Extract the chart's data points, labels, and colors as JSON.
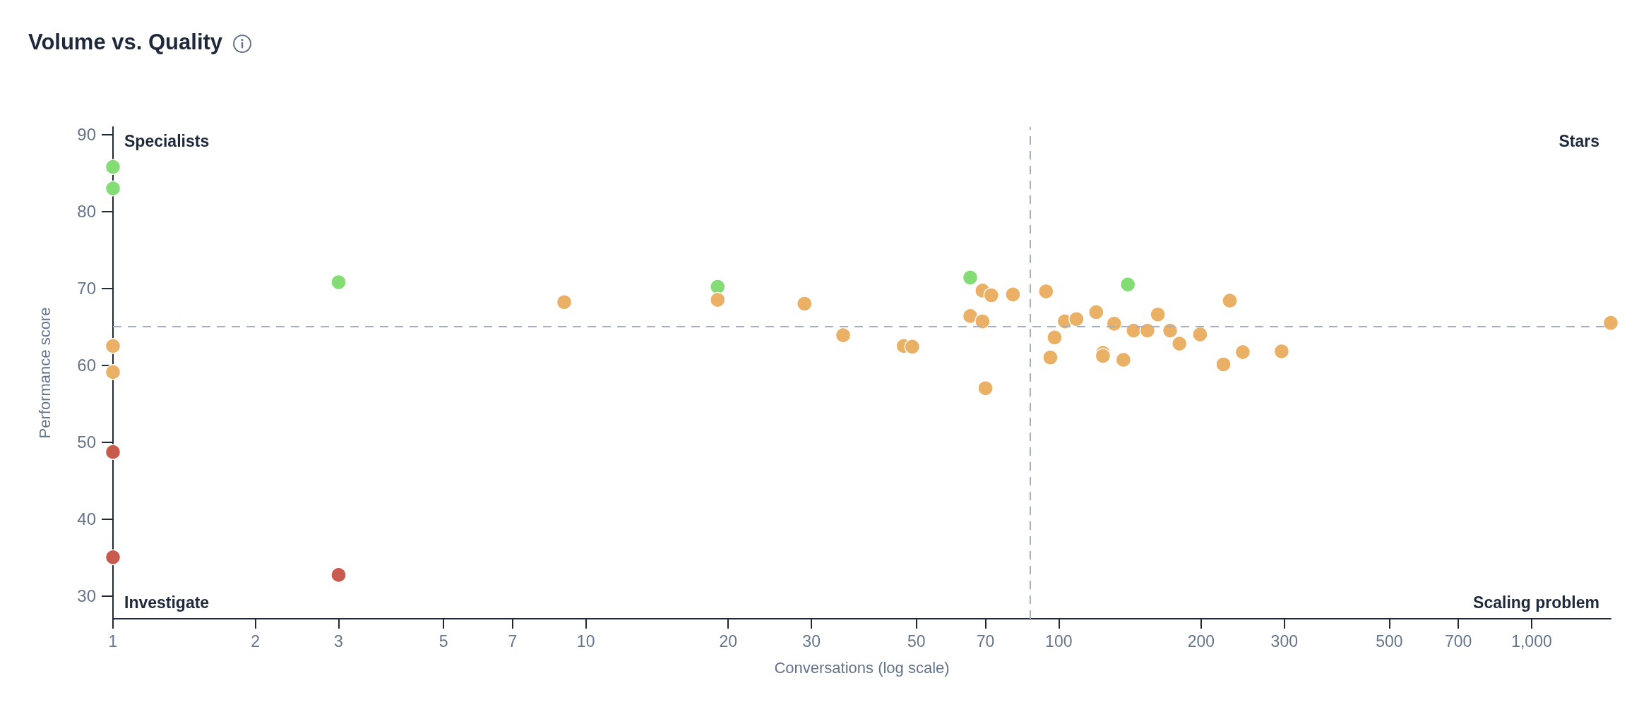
{
  "chart_data": {
    "type": "scatter",
    "title": "Volume vs. Quality",
    "xlabel": "Conversations (log scale)",
    "ylabel": "Performance score",
    "log": "x",
    "marker": "circle",
    "xlim": [
      1,
      1470
    ],
    "xticks": [
      1,
      2,
      3,
      5,
      7,
      10,
      20,
      30,
      50,
      70,
      100,
      200,
      300,
      500,
      700,
      {
        "value": 1000,
        "label": "1,000"
      }
    ],
    "ylim": [
      27,
      91
    ],
    "yticks": [
      30,
      40,
      50,
      60,
      70,
      80,
      90
    ],
    "ref_lines": [
      {
        "axis": "x",
        "value": 87,
        "color": "#a7afbd",
        "line_style": "dashed"
      },
      {
        "axis": "y",
        "value": 65,
        "color": "#a7afbd",
        "line_style": "dashed"
      }
    ],
    "annotations": [
      "Specialists",
      "Stars",
      "Investigate",
      "Scaling problem"
    ],
    "series": [
      {
        "color": "#84dd74",
        "x": [
          1,
          1,
          3,
          19,
          65,
          140
        ],
        "values": [
          85.8,
          83.0,
          70.8,
          70.2,
          71.4,
          70.5
        ]
      },
      {
        "color": "#e9b066",
        "x": [
          1,
          1,
          9,
          19,
          29,
          35,
          47,
          49,
          65,
          69,
          69,
          70,
          72,
          80,
          94,
          96,
          98,
          103,
          109,
          120,
          124,
          124,
          131,
          137,
          144,
          154,
          162,
          172,
          180,
          199,
          223,
          230,
          245,
          296,
          1470
        ],
        "values": [
          62.5,
          59.1,
          68.2,
          68.5,
          68.0,
          63.9,
          62.5,
          62.4,
          66.4,
          69.7,
          65.7,
          57.0,
          69.1,
          69.2,
          69.6,
          61.0,
          63.6,
          65.7,
          66.0,
          66.9,
          61.6,
          61.2,
          65.4,
          60.7,
          64.5,
          64.5,
          66.6,
          64.5,
          62.8,
          64.0,
          60.1,
          68.4,
          61.7,
          61.8,
          65.5
        ]
      },
      {
        "color": "#c95a4e",
        "x": [
          1,
          1,
          3
        ],
        "values": [
          48.7,
          35.0,
          32.7
        ]
      }
    ]
  }
}
